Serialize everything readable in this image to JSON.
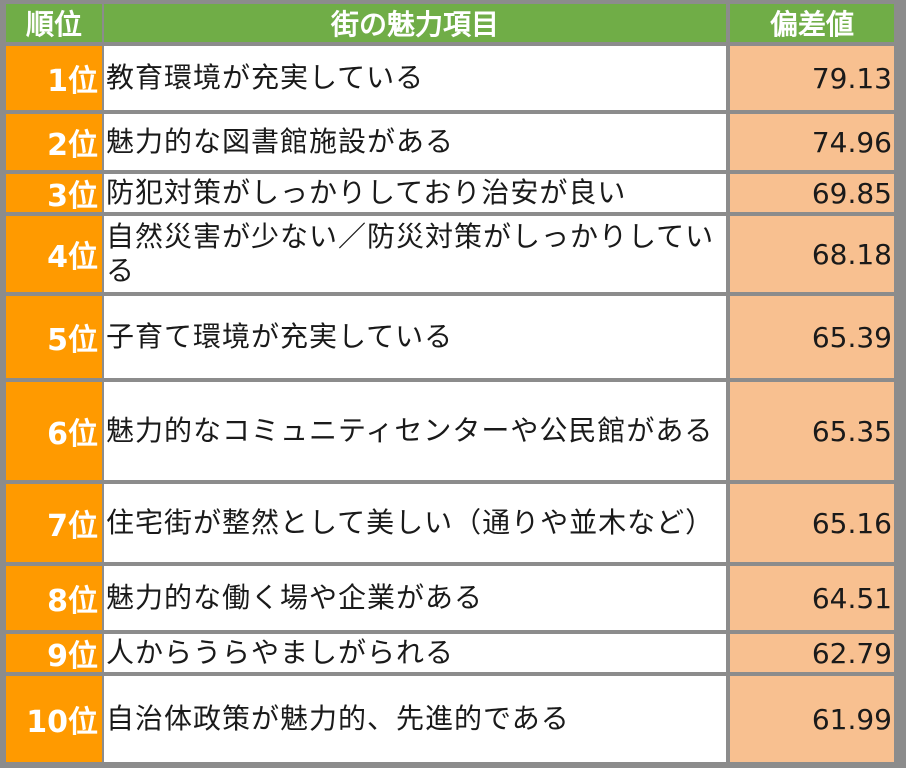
{
  "header": {
    "rank": "順位",
    "item": "街の魅力項目",
    "score": "偏差値"
  },
  "rows": [
    {
      "rank": "1位",
      "item": "教育環境が充実している",
      "score": "79.13"
    },
    {
      "rank": "2位",
      "item": "魅力的な図書館施設がある",
      "score": "74.96"
    },
    {
      "rank": "3位",
      "item": "防犯対策がしっかりしており治安が良い",
      "score": "69.85"
    },
    {
      "rank": "4位",
      "item": "自然災害が少ない／防災対策がしっかりしている",
      "score": "68.18"
    },
    {
      "rank": "5位",
      "item": "子育て環境が充実している",
      "score": "65.39"
    },
    {
      "rank": "6位",
      "item": "魅力的なコミュニティセンターや公民館がある",
      "score": "65.35"
    },
    {
      "rank": "7位",
      "item": "住宅街が整然として美しい（通りや並木など）",
      "score": "65.16"
    },
    {
      "rank": "8位",
      "item": "魅力的な働く場や企業がある",
      "score": "64.51"
    },
    {
      "rank": "9位",
      "item": "人からうらやましがられる",
      "score": "62.79"
    },
    {
      "rank": "10位",
      "item": "自治体政策が魅力的、先進的である",
      "score": "61.99"
    }
  ],
  "colors": {
    "header_bg": "#70ad47",
    "rank_bg": "#ff9a00",
    "score_bg": "#f8c090",
    "grid": "#8c8c8c"
  }
}
